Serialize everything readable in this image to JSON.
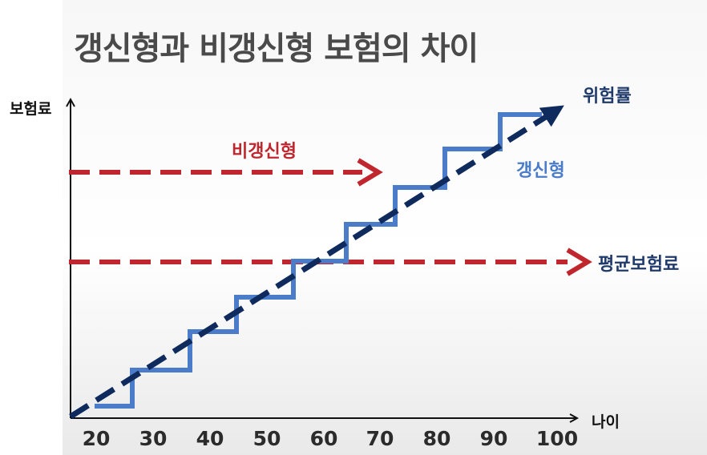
{
  "title": "갱신형과 비갱신형 보험의 차이",
  "axes": {
    "y_label": "보험료",
    "x_label": "나이",
    "x_ticks": [
      "20",
      "30",
      "40",
      "50",
      "60",
      "70",
      "80",
      "90",
      "100"
    ]
  },
  "labels": {
    "risk_rate": "위험률",
    "renewable": "갱신형",
    "non_renewable": "비갱신형",
    "average_premium": "평균보험료"
  },
  "colors": {
    "risk_line": "#0f2a5c",
    "renewable": "#4a7cc9",
    "non_renewable": "#c0262d",
    "axis": "#111111"
  }
}
